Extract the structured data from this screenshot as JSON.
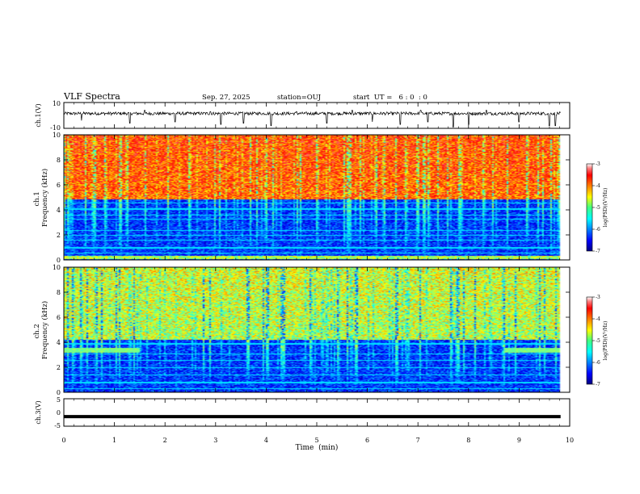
{
  "header": {
    "title": "VLF Spectra",
    "date": "Sep. 27, 2025",
    "station": "station=OUJ",
    "start_ut": "start  UT =   6 : 0  : 0"
  },
  "chart_data": {
    "type": "heatmap",
    "x_axis": {
      "label": "Time  (min)",
      "range": [
        0,
        10
      ],
      "ticks": [
        0,
        1,
        2,
        3,
        4,
        5,
        6,
        7,
        8,
        9,
        10
      ]
    },
    "panels": [
      {
        "id": "ch1-waveform",
        "type": "line",
        "ylabel": "ch.1(V)",
        "ylim": [
          -10,
          10
        ],
        "ytick_labels": [
          "10",
          "-10"
        ],
        "baseline": 1.5,
        "noise_amplitude": 1.2,
        "spikes": [
          {
            "t": 0.35,
            "v": -4
          },
          {
            "t": 1.3,
            "v": -6
          },
          {
            "t": 1.6,
            "v": 4
          },
          {
            "t": 2.2,
            "v": -5
          },
          {
            "t": 2.9,
            "v": 3
          },
          {
            "t": 3.1,
            "v": -7
          },
          {
            "t": 3.55,
            "v": -6
          },
          {
            "t": 4.1,
            "v": -8
          },
          {
            "t": 4.6,
            "v": 3
          },
          {
            "t": 5.2,
            "v": -6
          },
          {
            "t": 5.7,
            "v": 4
          },
          {
            "t": 6.1,
            "v": -5
          },
          {
            "t": 6.65,
            "v": -7
          },
          {
            "t": 7.05,
            "v": 4
          },
          {
            "t": 7.2,
            "v": -5
          },
          {
            "t": 7.7,
            "v": -9
          },
          {
            "t": 8.0,
            "v": -7
          },
          {
            "t": 8.35,
            "v": 4
          },
          {
            "t": 9.0,
            "v": -5
          },
          {
            "t": 9.6,
            "v": -8
          },
          {
            "t": 9.72,
            "v": -8
          }
        ]
      },
      {
        "id": "ch1-spectrogram",
        "type": "heatmap",
        "ylabel": "ch.1\nFrequency  (kHz)",
        "ylim": [
          0,
          10
        ],
        "yticks": [
          0,
          2,
          4,
          6,
          8,
          10
        ],
        "colorbar": {
          "label": "log(PSD)(V²/Hz)",
          "range": [
            -7,
            -3
          ],
          "ticks": [
            "-3",
            "-4",
            "-5",
            "-6",
            "-7"
          ]
        },
        "transition_khz": 4.9,
        "high_band_level": -4.0,
        "low_band_level": -6.3,
        "tones_khz": [
          0.3,
          0.6,
          1.0,
          1.6,
          2.0,
          2.4,
          3.3,
          3.6,
          4.1,
          4.6
        ],
        "hot_band_khz": [
          0.1,
          0.35
        ]
      },
      {
        "id": "ch2-spectrogram",
        "type": "heatmap",
        "ylabel": "ch.2\nFrequency  (kHz)",
        "ylim": [
          0,
          10
        ],
        "yticks": [
          0,
          2,
          4,
          6,
          8,
          10
        ],
        "colorbar": {
          "label": "log(PSD)(V²/Hz)",
          "range": [
            -7,
            -3
          ],
          "ticks": [
            "-3",
            "-4",
            "-5",
            "-6",
            "-7"
          ]
        },
        "transition_khz": 4.2,
        "high_band_level": -4.9,
        "low_band_level": -6.3,
        "tones_khz": [
          0.3,
          0.8,
          1.4,
          2.0,
          2.6,
          3.1,
          3.9
        ],
        "band_khz": [
          3.2,
          3.6
        ],
        "band_time_ranges_min": [
          [
            0,
            1.5
          ],
          [
            8.7,
            9.82
          ]
        ]
      },
      {
        "id": "ch3-waveform",
        "type": "line",
        "ylabel": "ch.3(V)",
        "ylim": [
          -5,
          5
        ],
        "ytick_labels": [
          "5",
          "0",
          "-5"
        ],
        "level": -1.5
      }
    ],
    "data_end_min": 9.82
  }
}
